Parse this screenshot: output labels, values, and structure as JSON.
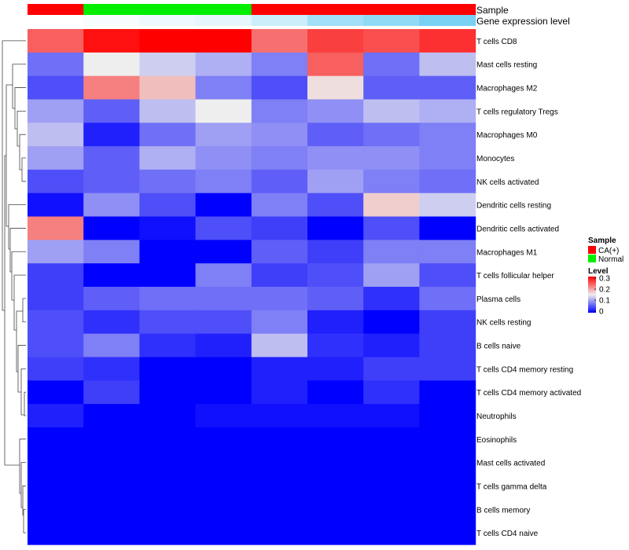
{
  "chart_data": {
    "type": "heatmap",
    "title": "",
    "annotation_tracks": [
      {
        "name": "Sample",
        "values": [
          "CA(+)",
          "Normal",
          "Normal",
          "Normal",
          "CA(+)",
          "CA(+)",
          "CA(+)",
          "CA(+)"
        ],
        "colors": {
          "CA(+)": "#ff0000",
          "Normal": "#00ee00"
        }
      },
      {
        "name": "Gene expression level",
        "values": [
          0.0,
          0.05,
          0.1,
          0.15,
          0.3,
          0.55,
          0.65,
          0.8
        ],
        "low_color": "#ffffff",
        "high_color": "#56c6f0"
      }
    ],
    "rows": [
      "T cells CD8",
      "Mast cells resting",
      "Macrophages M2",
      "T cells regulatory  Tregs",
      "Macrophages M0",
      "Monocytes",
      "NK cells activated",
      "Dendritic cells resting",
      "Dendritic cells activated",
      "Macrophages M1",
      "T cells follicular helper",
      "Plasma cells",
      "NK cells resting",
      "B cells naive",
      "T cells CD4 memory resting",
      "T cells CD4 memory activated",
      "Neutrophils",
      "Eosinophils",
      "Mast cells activated",
      "T cells gamma delta",
      "B cells memory",
      "T cells CD4 naive"
    ],
    "values": [
      [
        0.24,
        0.29,
        0.3,
        0.3,
        0.23,
        0.26,
        0.25,
        0.27
      ],
      [
        0.07,
        0.15,
        0.13,
        0.11,
        0.08,
        0.24,
        0.07,
        0.12
      ],
      [
        0.05,
        0.22,
        0.18,
        0.08,
        0.05,
        0.16,
        0.06,
        0.06
      ],
      [
        0.1,
        0.06,
        0.12,
        0.15,
        0.08,
        0.09,
        0.12,
        0.11
      ],
      [
        0.12,
        0.02,
        0.07,
        0.1,
        0.09,
        0.06,
        0.07,
        0.08
      ],
      [
        0.1,
        0.06,
        0.11,
        0.09,
        0.08,
        0.09,
        0.09,
        0.08
      ],
      [
        0.05,
        0.06,
        0.07,
        0.08,
        0.06,
        0.1,
        0.08,
        0.07
      ],
      [
        0.01,
        0.09,
        0.05,
        0.0,
        0.08,
        0.05,
        0.17,
        0.13
      ],
      [
        0.22,
        0.0,
        0.01,
        0.05,
        0.04,
        0.0,
        0.05,
        0.0
      ],
      [
        0.1,
        0.08,
        0.0,
        0.0,
        0.06,
        0.04,
        0.08,
        0.08
      ],
      [
        0.04,
        0.0,
        0.0,
        0.08,
        0.04,
        0.05,
        0.1,
        0.05
      ],
      [
        0.04,
        0.06,
        0.07,
        0.07,
        0.07,
        0.06,
        0.03,
        0.07
      ],
      [
        0.05,
        0.03,
        0.05,
        0.05,
        0.08,
        0.02,
        0.0,
        0.04
      ],
      [
        0.05,
        0.08,
        0.03,
        0.02,
        0.12,
        0.03,
        0.02,
        0.04
      ],
      [
        0.04,
        0.03,
        0.0,
        0.0,
        0.02,
        0.02,
        0.04,
        0.04
      ],
      [
        0.0,
        0.04,
        0.0,
        0.0,
        0.02,
        0.0,
        0.03,
        0.0
      ],
      [
        0.02,
        0.0,
        0.0,
        0.01,
        0.01,
        0.01,
        0.01,
        0.0
      ],
      [
        0.0,
        0.0,
        0.0,
        0.0,
        0.0,
        0.0,
        0.0,
        0.0
      ],
      [
        0.0,
        0.0,
        0.0,
        0.0,
        0.0,
        0.0,
        0.0,
        0.0
      ],
      [
        0.0,
        0.0,
        0.0,
        0.0,
        0.0,
        0.0,
        0.0,
        0.0
      ],
      [
        0.0,
        0.0,
        0.0,
        0.0,
        0.0,
        0.0,
        0.0,
        0.0
      ],
      [
        0.0,
        0.0,
        0.0,
        0.0,
        0.0,
        0.0,
        0.0,
        0.0
      ]
    ],
    "color_scale": {
      "min": 0,
      "mid": 0.15,
      "max": 0.3,
      "low": "#0000ff",
      "mid_color": "#eeeeee",
      "high": "#ff0000"
    },
    "legend": {
      "position": "right",
      "sample_title": "Sample",
      "sample_entries": [
        "CA(+)",
        "Normal"
      ],
      "level_title": "Level",
      "level_ticks": [
        "0.3",
        "0.2",
        "0.1",
        "0"
      ],
      "level_tick_values": [
        0.3,
        0.2,
        0.1,
        0
      ]
    }
  }
}
